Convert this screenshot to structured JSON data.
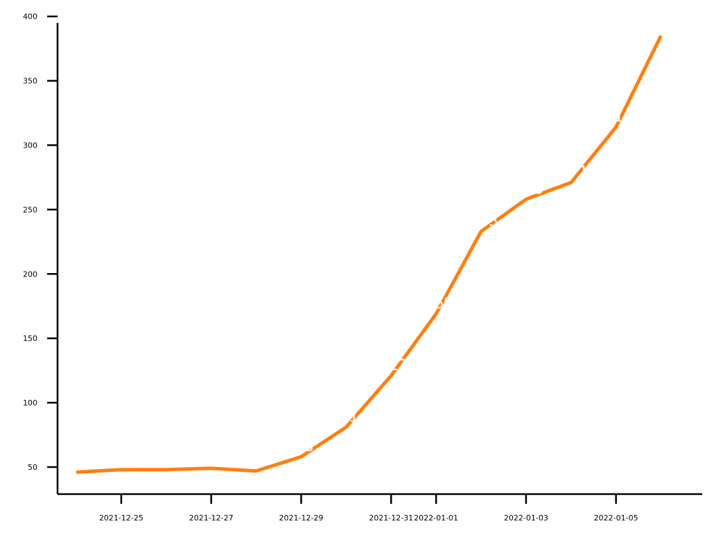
{
  "chart_data": {
    "type": "line",
    "title": "",
    "xlabel": "",
    "ylabel": "",
    "x": [
      "2021-12-24",
      "2021-12-25",
      "2021-12-26",
      "2021-12-27",
      "2021-12-28",
      "2021-12-29",
      "2021-12-30",
      "2021-12-31",
      "2022-01-01",
      "2022-01-02",
      "2022-01-03",
      "2022-01-04",
      "2022-01-05",
      "2022-01-06"
    ],
    "series": [
      {
        "color": "#ff7f0e",
        "values": [
          46,
          48,
          48,
          49,
          47,
          58,
          81,
          121,
          169,
          233,
          258,
          271,
          314,
          385
        ]
      }
    ],
    "xlim": [
      "2021-12-23 14:00",
      "2022-01-06 22:00"
    ],
    "ylim": [
      29,
      402
    ],
    "x_ticks": [
      "2021-12-25",
      "2021-12-27",
      "2021-12-29",
      "2021-12-31",
      "2022-01-01",
      "2022-01-03",
      "2022-01-05"
    ],
    "x_tick_labels": [
      "2021-12-25",
      "2021-12-27",
      "2021-12-29",
      "2021-12-31",
      "2022-01-01",
      "2022-01-03",
      "2022-01-05"
    ],
    "y_ticks": [
      50,
      100,
      150,
      200,
      250,
      300,
      350,
      400
    ],
    "y_tick_labels": [
      "50",
      "100",
      "150",
      "200",
      "250",
      "300",
      "350",
      "400"
    ],
    "data_labels": [
      {
        "x": "2021-12-29",
        "text": "58"
      },
      {
        "x": "2021-12-30",
        "text": "81"
      },
      {
        "x": "2021-12-31",
        "text": "121"
      },
      {
        "x": "2022-01-01",
        "text": "169"
      },
      {
        "x": "2022-01-02",
        "text": "233"
      },
      {
        "x": "2022-01-03",
        "text": "258"
      },
      {
        "x": "2022-01-04",
        "text": "271"
      },
      {
        "x": "2022-01-05",
        "text": "314"
      }
    ],
    "grid": false,
    "legend": "none"
  }
}
